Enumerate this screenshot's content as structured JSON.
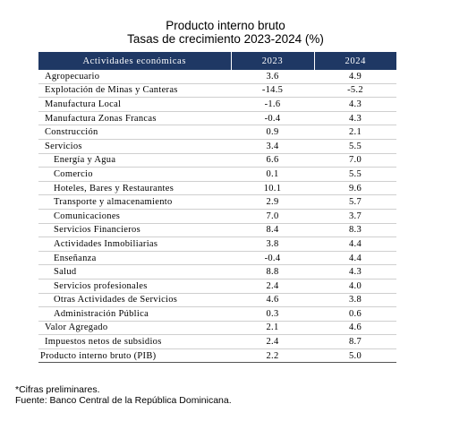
{
  "title": "Producto interno bruto",
  "subtitle": "Tasas de crecimiento 2023-2024 (%)",
  "table": {
    "headers": [
      "Actividades económicas",
      "2023",
      "2024"
    ],
    "rows": [
      {
        "label": "Agropecuario",
        "y2023": "3.6",
        "y2024": "4.9",
        "level": "main"
      },
      {
        "label": "Explotación de Minas y Canteras",
        "y2023": "-14.5",
        "y2024": "-5.2",
        "level": "main"
      },
      {
        "label": "Manufactura Local",
        "y2023": "-1.6",
        "y2024": "4.3",
        "level": "main"
      },
      {
        "label": "Manufactura Zonas Francas",
        "y2023": "-0.4",
        "y2024": "4.3",
        "level": "main"
      },
      {
        "label": "Construcción",
        "y2023": "0.9",
        "y2024": "2.1",
        "level": "main"
      },
      {
        "label": "Servicios",
        "y2023": "3.4",
        "y2024": "5.5",
        "level": "main"
      },
      {
        "label": "Energía y Agua",
        "y2023": "6.6",
        "y2024": "7.0",
        "level": "sub"
      },
      {
        "label": "Comercio",
        "y2023": "0.1",
        "y2024": "5.5",
        "level": "sub"
      },
      {
        "label": "Hoteles, Bares y Restaurantes",
        "y2023": "10.1",
        "y2024": "9.6",
        "level": "sub"
      },
      {
        "label": "Transporte y almacenamiento",
        "y2023": "2.9",
        "y2024": "5.7",
        "level": "sub"
      },
      {
        "label": "Comunicaciones",
        "y2023": "7.0",
        "y2024": "3.7",
        "level": "sub"
      },
      {
        "label": "Servicios Financieros",
        "y2023": "8.4",
        "y2024": "8.3",
        "level": "sub"
      },
      {
        "label": "Actividades Inmobiliarias",
        "y2023": "3.8",
        "y2024": "4.4",
        "level": "sub"
      },
      {
        "label": "Enseñanza",
        "y2023": "-0.4",
        "y2024": "4.4",
        "level": "sub"
      },
      {
        "label": "Salud",
        "y2023": "8.8",
        "y2024": "4.3",
        "level": "sub"
      },
      {
        "label": "Servicios profesionales",
        "y2023": "2.4",
        "y2024": "4.0",
        "level": "sub"
      },
      {
        "label": "Otras Actividades de Servicios",
        "y2023": "4.6",
        "y2024": "3.8",
        "level": "sub"
      },
      {
        "label": "Administración Pública",
        "y2023": "0.3",
        "y2024": "0.6",
        "level": "sub"
      },
      {
        "label": "Valor Agregado",
        "y2023": "2.1",
        "y2024": "4.6",
        "level": "main"
      },
      {
        "label": "Impuestos netos de subsidios",
        "y2023": "2.4",
        "y2024": "8.7",
        "level": "main"
      },
      {
        "label": "Producto interno bruto (PIB)",
        "y2023": "2.2",
        "y2024": "5.0",
        "level": "total"
      }
    ]
  },
  "footnotes": [
    "*Cifras preliminares.",
    "Fuente: Banco Central de la República Dominicana."
  ]
}
